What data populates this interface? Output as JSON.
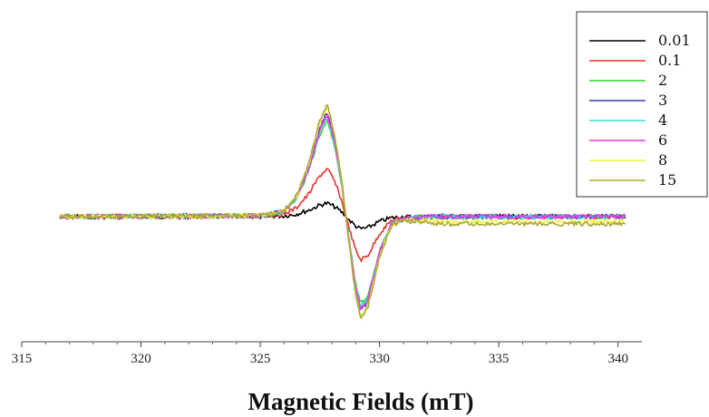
{
  "chart_data": {
    "type": "line",
    "title": "",
    "xlabel": "Magnetic Fields (mT)",
    "ylabel": "",
    "xlim": [
      315,
      341
    ],
    "ylim": [
      -1.15,
      1.5
    ],
    "xticks": [
      "315",
      "320",
      "325",
      "330",
      "335",
      "340"
    ],
    "grid": false,
    "legend_position": "top-right",
    "series": [
      {
        "name": "0.01",
        "color": "#000000",
        "scale": 0.13,
        "baseline_tail": 0.0
      },
      {
        "name": "0.1",
        "color": "#e8302e",
        "scale": 0.46,
        "baseline_tail": 0.0
      },
      {
        "name": "2",
        "color": "#2fd62f",
        "scale": 0.93,
        "baseline_tail": 0.0
      },
      {
        "name": "3",
        "color": "#3a3ab8",
        "scale": 1.0,
        "baseline_tail": 0.0
      },
      {
        "name": "4",
        "color": "#32dede",
        "scale": 0.96,
        "baseline_tail": 0.0
      },
      {
        "name": "6",
        "color": "#ee33ee",
        "scale": 0.98,
        "baseline_tail": 0.0
      },
      {
        "name": "8",
        "color": "#f2f234",
        "scale": 1.06,
        "baseline_tail": -0.05
      },
      {
        "name": "15",
        "color": "#a8a838",
        "scale": 1.08,
        "baseline_tail": -0.07
      }
    ],
    "x": [
      316.6,
      325.0,
      326.0,
      326.5,
      327.0,
      327.5,
      327.8,
      328.1,
      328.4,
      328.7,
      329.0,
      329.2,
      329.5,
      330.0,
      330.5,
      331.0,
      332.0,
      335.0,
      340.3
    ],
    "shape": [
      0.0,
      0.01,
      0.05,
      0.18,
      0.45,
      0.85,
      1.0,
      0.75,
      0.35,
      -0.2,
      -0.7,
      -0.9,
      -0.82,
      -0.35,
      -0.08,
      -0.02,
      0.0,
      0.0,
      0.0
    ]
  }
}
